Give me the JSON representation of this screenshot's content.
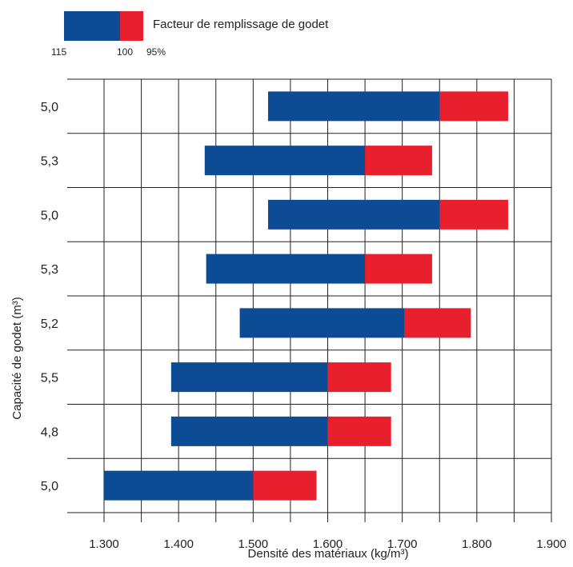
{
  "legend": {
    "label": "Facteur de remplissage de godet",
    "scale": [
      "115",
      "100",
      "95%"
    ],
    "colors": {
      "blue": "#0e4b95",
      "red": "#e8202e"
    }
  },
  "chart_data": {
    "type": "bar",
    "orientation": "horizontal-range",
    "xlabel": "Densité des matériaux (kg/m³)",
    "ylabel": "Capacité de godet (m³)",
    "xlim": [
      1300,
      1900
    ],
    "x_ticks": [
      "1.300",
      "1.400",
      "1.500",
      "1.600",
      "1.700",
      "1.800",
      "1.900"
    ],
    "grid": true,
    "categories": [
      "5,0",
      "5,3",
      "5,0",
      "5,3",
      "5,2",
      "5,5",
      "4,8",
      "5,0"
    ],
    "series": [
      {
        "name": "115",
        "color": "#0e4b95",
        "start": [
          1520,
          1435,
          1520,
          1437,
          1482,
          1390,
          1390,
          1300
        ],
        "end": [
          1750,
          1650,
          1750,
          1650,
          1703,
          1600,
          1600,
          1500
        ]
      },
      {
        "name": "95%",
        "color": "#e8202e",
        "start": [
          1750,
          1650,
          1750,
          1650,
          1703,
          1600,
          1600,
          1500
        ],
        "end": [
          1842,
          1740,
          1842,
          1740,
          1792,
          1685,
          1685,
          1585
        ]
      }
    ]
  }
}
